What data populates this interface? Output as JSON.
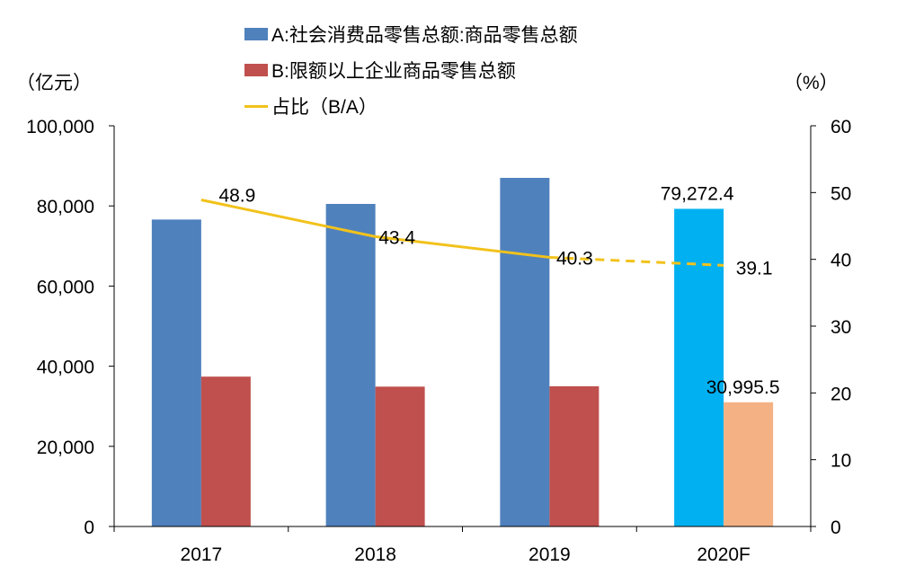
{
  "units": {
    "left": "（亿元）",
    "right": "（%）"
  },
  "legend": [
    {
      "label": "A:社会消费品零售总额:商品零售总额",
      "color": "#4f81bd",
      "kind": "bar"
    },
    {
      "label": "B:限额以上企业商品零售总额",
      "color": "#c0504d",
      "kind": "bar"
    },
    {
      "label": "占比（B/A）",
      "color": "#f2c21b",
      "kind": "line"
    }
  ],
  "chart_data": {
    "type": "bar",
    "categories": [
      "2017",
      "2018",
      "2019",
      "2020F"
    ],
    "series": [
      {
        "name": "A:社会消费品零售总额:商品零售总额",
        "values": [
          76600,
          80500,
          87000,
          79272.4
        ],
        "color": "#4f81bd",
        "forecast_color": "#00b0f0",
        "axis": "left"
      },
      {
        "name": "B:限额以上企业商品零售总额",
        "values": [
          37400,
          34900,
          35000,
          30995.5
        ],
        "color": "#c0504d",
        "forecast_color": "#f4b183",
        "axis": "left"
      },
      {
        "name": "占比（B/A）",
        "type": "line",
        "values": [
          48.9,
          43.4,
          40.3,
          39.1
        ],
        "color": "#f2c21b",
        "axis": "right",
        "dashed_last_segment": true
      }
    ],
    "data_labels": {
      "ratio": [
        "48.9",
        "43.4",
        "40.3",
        "39.1"
      ],
      "forecast_A": "79,272.4",
      "forecast_B": "30,995.5"
    },
    "y_left": {
      "min": 0,
      "max": 100000,
      "step": 20000,
      "ticks": [
        "0",
        "20,000",
        "40,000",
        "60,000",
        "80,000",
        "100,000"
      ]
    },
    "y_right": {
      "min": 0,
      "max": 60,
      "step": 10,
      "ticks": [
        "0",
        "10",
        "20",
        "30",
        "40",
        "50",
        "60"
      ]
    },
    "grid": false,
    "legend_position": "top"
  }
}
